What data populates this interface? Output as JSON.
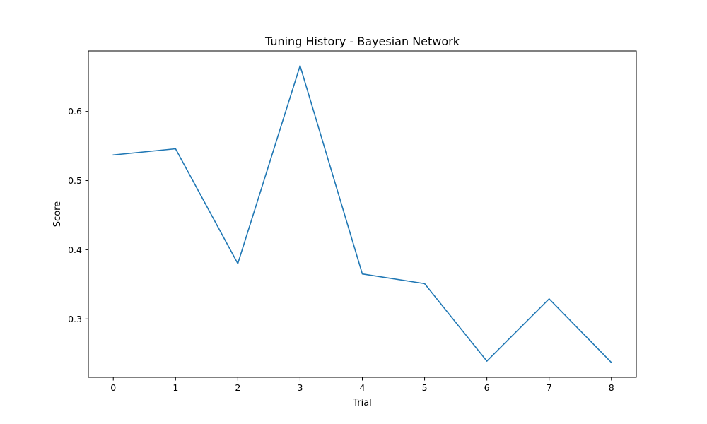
{
  "chart_data": {
    "type": "line",
    "title": "Tuning History - Bayesian Network",
    "xlabel": "Trial",
    "ylabel": "Score",
    "x": [
      0,
      1,
      2,
      3,
      4,
      5,
      6,
      7,
      8
    ],
    "series": [
      {
        "values": [
          0.537,
          0.546,
          0.38,
          0.666,
          0.365,
          0.351,
          0.239,
          0.329,
          0.237
        ],
        "color": "#1f77b4"
      }
    ],
    "xticks": [
      0,
      1,
      2,
      3,
      4,
      5,
      6,
      7,
      8
    ],
    "yticks": [
      0.3,
      0.4,
      0.5,
      0.6
    ],
    "ytick_labels": [
      "0.3",
      "0.4",
      "0.5",
      "0.6"
    ],
    "xlim": [
      -0.4,
      8.4
    ],
    "ylim": [
      0.2155,
      0.6875
    ],
    "grid": false,
    "legend": "none"
  }
}
